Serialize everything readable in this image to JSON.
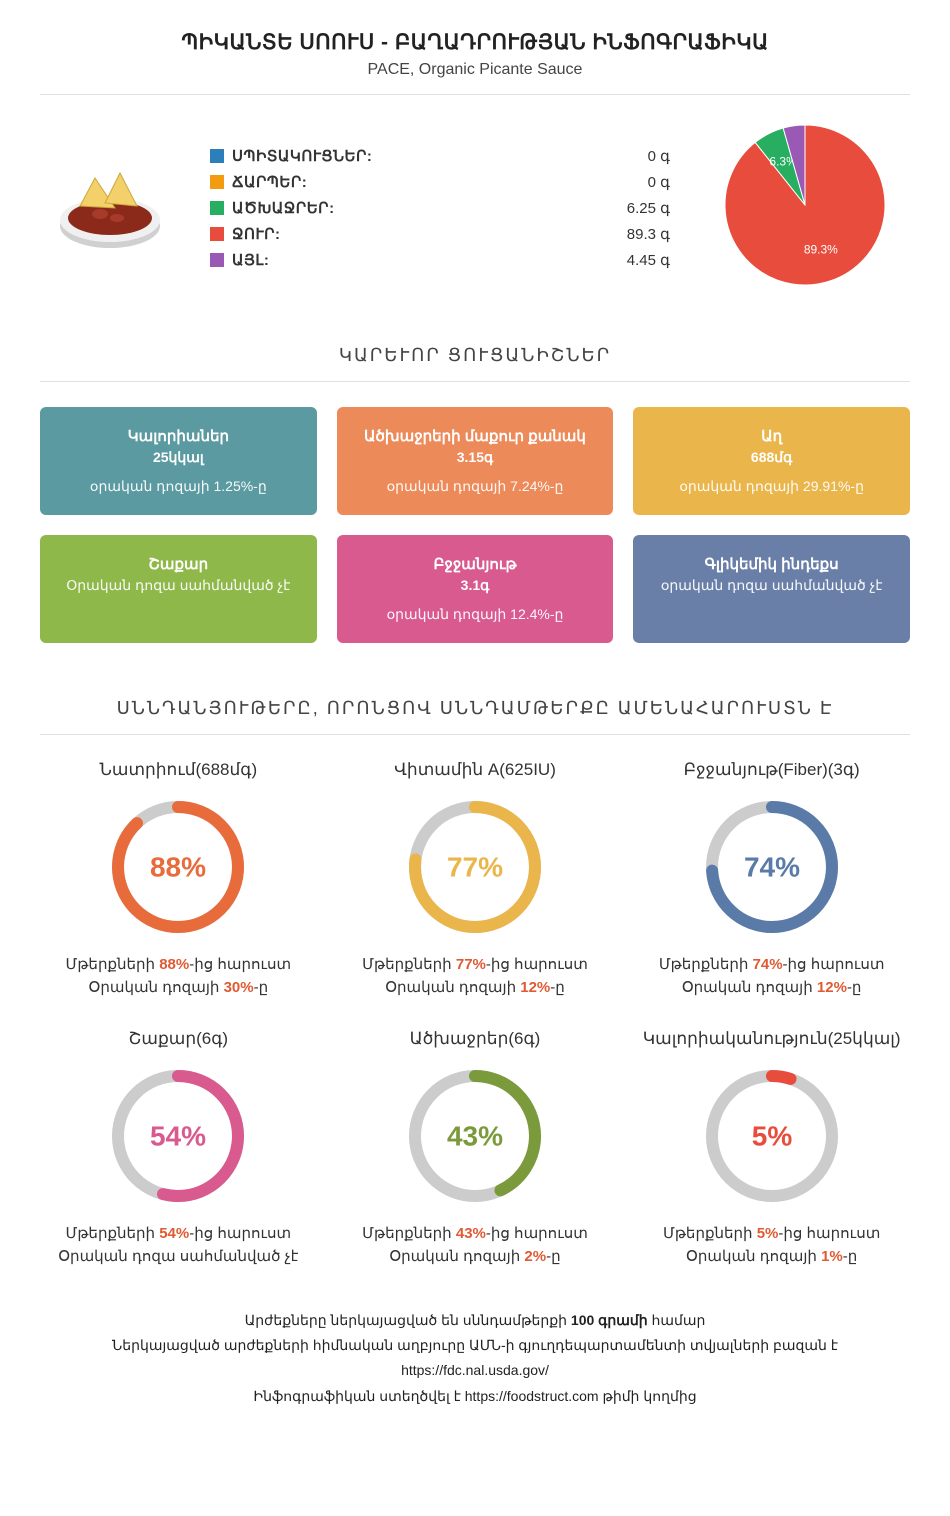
{
  "header": {
    "title": "ՊԻԿԱՆՏԵ ՍՈՈՒՍ - ԲԱՂԱԴՐՈՒԹՅԱՆ ԻՆՖՈԳՐԱՖԻԿԱ",
    "subtitle": "PACE, Organic Picante Sauce"
  },
  "macros": {
    "rows": [
      {
        "label": "ՍՊԻՏԱԿՈՒՑՆԵՐ:",
        "value": "0 գ",
        "color": "#2c7fb8"
      },
      {
        "label": "ՃԱՐՊԵՐ:",
        "value": "0 գ",
        "color": "#f39c12"
      },
      {
        "label": "ԱԾԽԱՋՐԵՐ:",
        "value": "6.25 գ",
        "color": "#27ae60"
      },
      {
        "label": "ՋՈՒՐ:",
        "value": "89.3 գ",
        "color": "#e74c3c"
      },
      {
        "label": "ԱՅԼ:",
        "value": "4.45 գ",
        "color": "#9b59b6"
      }
    ]
  },
  "pie": {
    "slices": [
      {
        "pct": 89.3,
        "color": "#e74c3c",
        "label": "89.3%"
      },
      {
        "pct": 6.3,
        "color": "#27ae60",
        "label": "6.3%"
      },
      {
        "pct": 4.4,
        "color": "#9b59b6",
        "label": ""
      }
    ]
  },
  "section1_title": "ԿԱՐԵՒՈՐ ՑՈՒՑԱՆԻՇՆԵՐ",
  "cards": [
    {
      "title": "Կալորիաներ",
      "value": "25կկալ",
      "sub": "օրական դոզայի 1.25%-ը",
      "bg": "#5a9aa0"
    },
    {
      "title": "Ածխաջրերի մաքուր քանակ",
      "value": "3.15գ",
      "sub": "օրական դոզայի 7.24%-ը",
      "bg": "#ed8a5a"
    },
    {
      "title": "Աղ",
      "value": "688մգ",
      "sub": "օրական դոզայի 29.91%-ը",
      "bg": "#eab54a"
    },
    {
      "title": "Շաքար",
      "value": "",
      "sub": "Օրական դոզա սահմանված չէ",
      "bg": "#8fb84a"
    },
    {
      "title": "Բջջանյութ",
      "value": "3.1գ",
      "sub": "օրական դոզայի 12.4%-ը",
      "bg": "#d85a8f"
    },
    {
      "title": "Գլիկեմիկ ինդեքս",
      "value": "",
      "sub": "օրական դոզա սահմանված չէ",
      "bg": "#6a7fa8"
    }
  ],
  "section2_title": "ՍՆՆԴԱՆՅՈՒԹԵՐԸ, ՈՐՈՆՑՈՎ ՍՆՆԴԱՄԹԵՐՔԸ ԱՄԵՆԱՀԱՐՈՒՍՏՆ Է",
  "donuts": [
    {
      "title": "Նատրիում(688մգ)",
      "pct": 88,
      "color": "#e86b3c",
      "line1_pre": "Մթերքների ",
      "line1_pct": "88%",
      "line1_post": "-ից հարուստ",
      "line2_pre": "Օրական դոզայի ",
      "line2_pct": "30%",
      "line2_post": "-ը"
    },
    {
      "title": "Վիտամին A(625IU)",
      "pct": 77,
      "color": "#eab54a",
      "line1_pre": "Մթերքների ",
      "line1_pct": "77%",
      "line1_post": "-ից հարուստ",
      "line2_pre": "Օրական դոզայի ",
      "line2_pct": "12%",
      "line2_post": "-ը"
    },
    {
      "title": "Բջջանյութ(Fiber)(3գ)",
      "pct": 74,
      "color": "#5a7aa8",
      "line1_pre": "Մթերքների ",
      "line1_pct": "74%",
      "line1_post": "-ից հարուստ",
      "line2_pre": "Օրական դոզայի ",
      "line2_pct": "12%",
      "line2_post": "-ը"
    },
    {
      "title": "Շաքար(6գ)",
      "pct": 54,
      "color": "#d85a8f",
      "line1_pre": "Մթերքների ",
      "line1_pct": "54%",
      "line1_post": "-ից հարուստ",
      "line2_pre": "Օրական դոզա սահմանված չէ",
      "line2_pct": "",
      "line2_post": ""
    },
    {
      "title": "Ածխաջրեր(6գ)",
      "pct": 43,
      "color": "#7a9a3c",
      "line1_pre": "Մթերքների ",
      "line1_pct": "43%",
      "line1_post": "-ից հարուստ",
      "line2_pre": "Օրական դոզայի ",
      "line2_pct": "2%",
      "line2_post": "-ը"
    },
    {
      "title": "Կալորիականություն(25կկալ)",
      "pct": 5,
      "color": "#e74c3c",
      "line1_pre": "Մթերքների ",
      "line1_pct": "5%",
      "line1_post": "-ից հարուստ",
      "line2_pre": "Օրական դոզայի ",
      "line2_pct": "1%",
      "line2_post": "-ը"
    }
  ],
  "footer": {
    "line1_pre": "Արժեքները ներկայացված են սննդամթերքի ",
    "line1_bold": "100 գրամի",
    "line1_post": " համար",
    "line2": "Ներկայացված արժեքների հիմնական աղբյուրը ԱՄՆ-ի գյուղդեպարտամենտի տվյալների բազան է",
    "line3": "https://fdc.nal.usda.gov/",
    "line4": "Ինֆոգրաֆիկան ստեղծվել է https://foodstruct.com թիմի կողմից"
  },
  "style": {
    "donut_track_color": "#cccccc",
    "donut_stroke_width": 12,
    "donut_radius": 60,
    "donut_size": 150
  }
}
